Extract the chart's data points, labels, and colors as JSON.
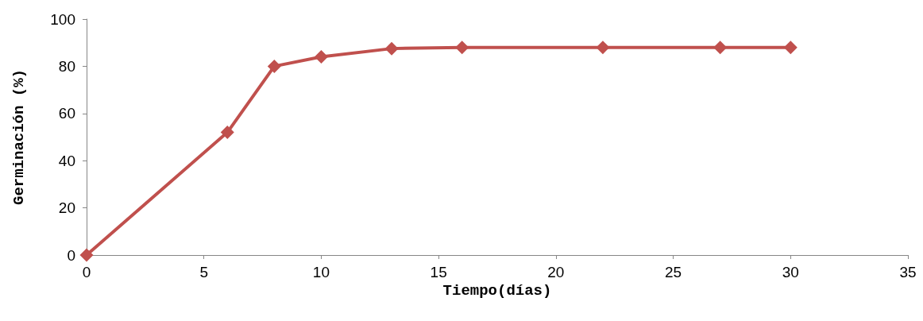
{
  "chart_data": {
    "type": "line",
    "xlabel": "Tiempo(días)",
    "ylabel": "Germinación (%)",
    "x": [
      0,
      6,
      8,
      10,
      13,
      16,
      22,
      27,
      30
    ],
    "series": [
      {
        "color": "#c0504d",
        "values": [
          0,
          52,
          80,
          84,
          87.5,
          88,
          88,
          88,
          88
        ]
      }
    ],
    "xlim": [
      0,
      35
    ],
    "xticks": [
      0,
      5,
      10,
      15,
      20,
      25,
      30,
      35
    ],
    "ylim": [
      0,
      100
    ],
    "yticks": [
      0,
      20,
      40,
      60,
      80,
      100
    ],
    "grid": false,
    "marker": "diamond",
    "line_style": "solid"
  }
}
